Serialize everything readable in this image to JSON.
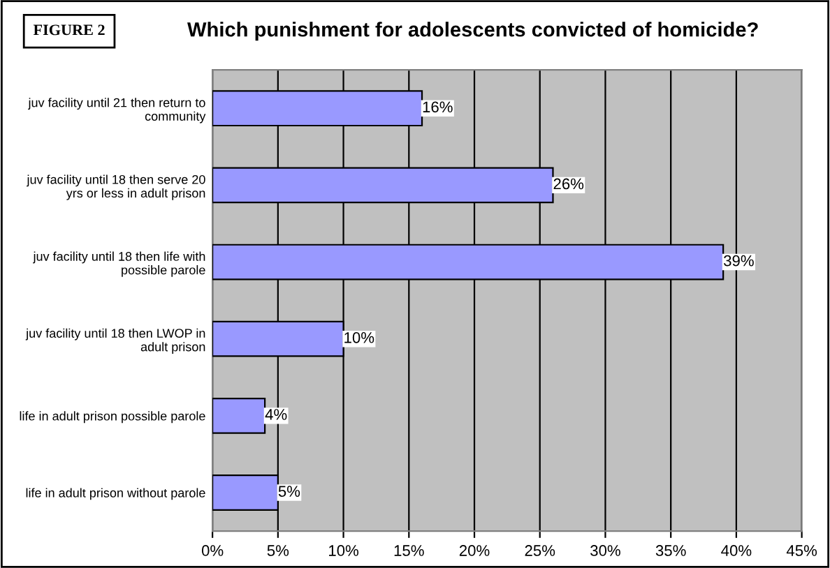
{
  "chart_data": {
    "type": "bar",
    "orientation": "horizontal",
    "title": "Which punishment for adolescents convicted of homicide?",
    "annotations": [
      "FIGURE 2"
    ],
    "categories": [
      "juv facility until 21 then return to\ncommunity",
      "juv facility until 18 then serve 20\nyrs or less in adult prison",
      "juv facility until 18 then life with\npossible parole",
      "juv facility until 18 then LWOP in\nadult prison",
      "life in adult prison possible parole",
      "life in adult prison without parole"
    ],
    "values": [
      16,
      26,
      39,
      10,
      4,
      5
    ],
    "value_labels": [
      "16%",
      "26%",
      "39%",
      "10%",
      "4%",
      "5%"
    ],
    "color": "#9999ff",
    "xlim": [
      0,
      45
    ],
    "xticks": [
      {
        "value": 0,
        "label": "0%"
      },
      {
        "value": 5,
        "label": "5%"
      },
      {
        "value": 10,
        "label": "10%"
      },
      {
        "value": 15,
        "label": "15%"
      },
      {
        "value": 20,
        "label": "20%"
      },
      {
        "value": 25,
        "label": "25%"
      },
      {
        "value": 30,
        "label": "30%"
      },
      {
        "value": 35,
        "label": "35%"
      },
      {
        "value": 40,
        "label": "40%"
      },
      {
        "value": 45,
        "label": "45%"
      }
    ],
    "grid": "x",
    "legend": false
  }
}
